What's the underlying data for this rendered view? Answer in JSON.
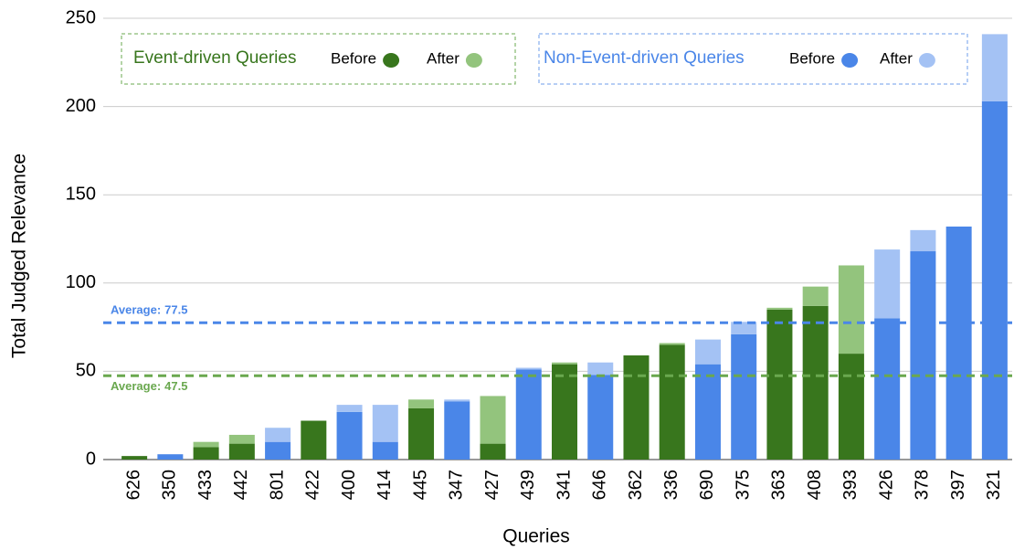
{
  "chart_data": {
    "type": "bar",
    "stacked": true,
    "x_label": "Queries",
    "y_label": "Total Judged Relevance",
    "categories": [
      "626",
      "350",
      "433",
      "442",
      "801",
      "422",
      "400",
      "414",
      "445",
      "347",
      "427",
      "439",
      "341",
      "646",
      "362",
      "336",
      "690",
      "375",
      "363",
      "408",
      "393",
      "426",
      "378",
      "397",
      "321"
    ],
    "series": [
      {
        "group": "Event-driven Queries",
        "name": "Before",
        "color": "#38761d",
        "values": [
          2,
          null,
          7,
          9,
          null,
          22,
          null,
          null,
          29,
          null,
          9,
          null,
          54,
          null,
          59,
          65,
          null,
          null,
          85,
          87,
          60,
          null,
          null,
          null,
          null
        ]
      },
      {
        "group": "Event-driven Queries",
        "name": "After",
        "color": "#93c47d",
        "values": [
          0,
          null,
          3,
          5,
          null,
          0,
          null,
          null,
          5,
          null,
          27,
          null,
          1,
          null,
          0,
          1,
          null,
          null,
          1,
          11,
          50,
          null,
          null,
          null,
          null
        ]
      },
      {
        "group": "Non-Event-driven Queries",
        "name": "Before",
        "color": "#4a86e8",
        "values": [
          null,
          3,
          null,
          null,
          10,
          null,
          27,
          10,
          null,
          33,
          null,
          51,
          null,
          48,
          null,
          null,
          54,
          71,
          null,
          null,
          null,
          80,
          118,
          132,
          203
        ]
      },
      {
        "group": "Non-Event-driven Queries",
        "name": "After",
        "color": "#a4c2f4",
        "values": [
          null,
          0,
          null,
          null,
          8,
          null,
          4,
          21,
          null,
          1,
          null,
          1,
          null,
          7,
          null,
          null,
          14,
          7,
          null,
          null,
          null,
          39,
          12,
          0,
          38
        ]
      }
    ],
    "averages": [
      {
        "label": "Average:",
        "value": 77.5,
        "color": "#4a86e8"
      },
      {
        "label": "Average:",
        "value": 47.5,
        "color": "#6aa84f"
      }
    ],
    "ylim": [
      0,
      250
    ],
    "yticks": [
      0,
      50,
      100,
      150,
      200,
      250
    ],
    "grid": true
  }
}
